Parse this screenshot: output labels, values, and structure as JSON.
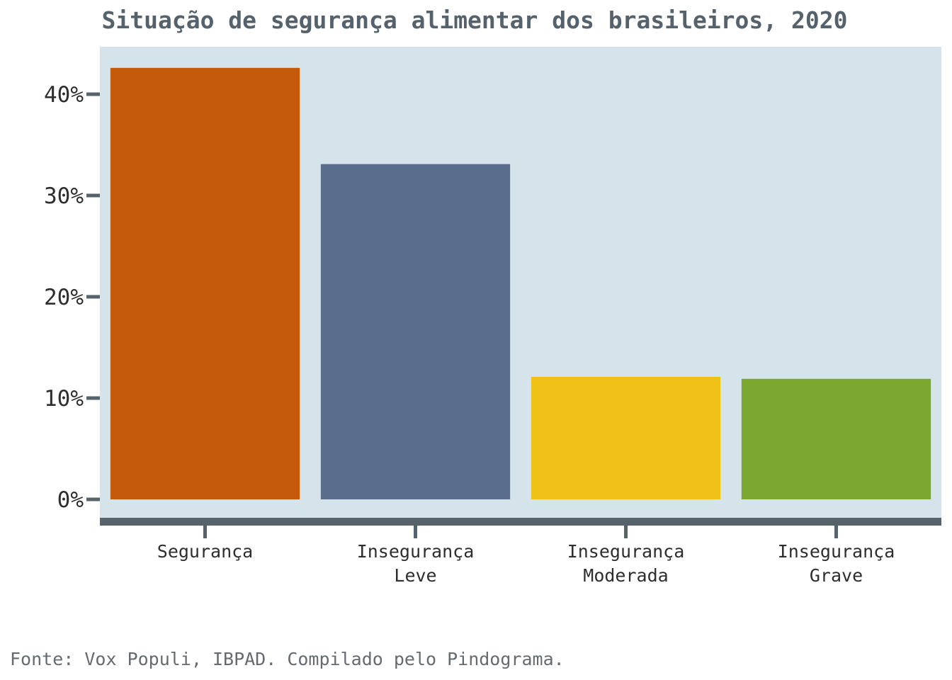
{
  "chart_data": {
    "type": "bar",
    "title": "Situação de segurança alimentar dos brasileiros, 2020",
    "categories": [
      [
        "Segurança"
      ],
      [
        "Insegurança",
        "Leve"
      ],
      [
        "Insegurança",
        "Moderada"
      ],
      [
        "Insegurança",
        "Grave"
      ]
    ],
    "values": [
      42.6,
      33.1,
      12.1,
      11.9
    ],
    "colors": [
      "#c55a0a",
      "#5a6d8c",
      "#f0c218",
      "#7ca72e"
    ],
    "yticks": [
      0,
      10,
      20,
      30,
      40
    ],
    "ytick_labels": [
      "0%",
      "10%",
      "20%",
      "30%",
      "40%"
    ],
    "ylim": [
      0,
      44
    ],
    "xlabel": "",
    "ylabel": "",
    "legend": "none",
    "grid": false,
    "plot_background": "#d4e4ea",
    "axis_color": "#56636b"
  },
  "source": "Fonte: Vox Populi, IBPAD. Compilado pelo Pindograma."
}
